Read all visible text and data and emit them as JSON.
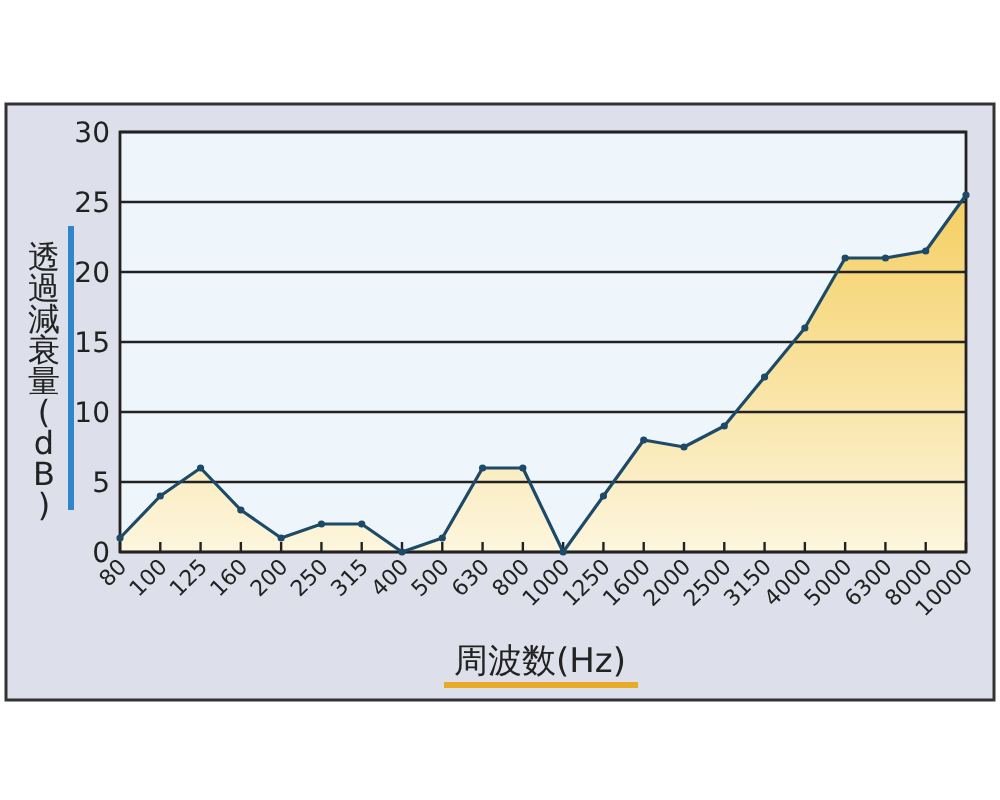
{
  "chart_data": {
    "type": "area",
    "xlabel": "周波数(Hz)",
    "ylabel": "透過減衰量(dB)",
    "categories": [
      "80",
      "100",
      "125",
      "160",
      "200",
      "250",
      "315",
      "400",
      "500",
      "630",
      "800",
      "1000",
      "1250",
      "1600",
      "2000",
      "2500",
      "3150",
      "4000",
      "5000",
      "6300",
      "8000",
      "10000"
    ],
    "series": [
      {
        "color": "#1d4a68",
        "values": [
          1,
          4,
          6,
          3,
          1,
          2,
          2,
          0,
          1,
          6,
          6,
          0,
          4,
          8,
          7.5,
          9,
          12.5,
          16,
          21,
          21,
          21.5,
          25.5
        ]
      }
    ],
    "ylim": [
      0,
      30
    ],
    "yticks": [
      0,
      5,
      10,
      15,
      20,
      25,
      30
    ],
    "grid": "y",
    "marker": "circle"
  }
}
